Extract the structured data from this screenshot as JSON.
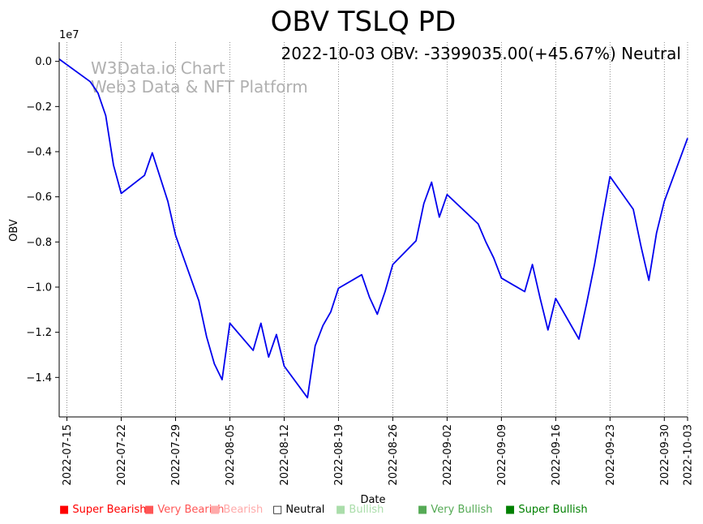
{
  "chart_data": {
    "type": "line",
    "title": "OBV TSLQ PD",
    "annotation": "2022-10-03 OBV: -3399035.00(+45.67%) Neutral",
    "watermark": [
      "W3Data.io Chart",
      "Web3 Data & NFT Platform"
    ],
    "xlabel": "Date",
    "ylabel": "OBV",
    "y_scale_label": "1e7",
    "y_unit_multiplier": 10000000,
    "ylim": [
      -1.575,
      0.085
    ],
    "yticks": [
      0.0,
      -0.2,
      -0.4,
      -0.6,
      -0.8,
      -1.0,
      -1.2,
      -1.4
    ],
    "ytick_labels": [
      "0.0",
      "−0.2",
      "−0.4",
      "−0.6",
      "−0.8",
      "−1.0",
      "−1.2",
      "−1.4"
    ],
    "xlim": [
      "2022-07-14",
      "2022-10-03"
    ],
    "xticks": [
      "2022-07-15",
      "2022-07-22",
      "2022-07-29",
      "2022-08-05",
      "2022-08-12",
      "2022-08-19",
      "2022-08-26",
      "2022-09-02",
      "2022-09-09",
      "2022-09-16",
      "2022-09-23",
      "2022-09-30",
      "2022-10-03"
    ],
    "series": [
      {
        "name": "OBV",
        "color": "#0000ee",
        "x": [
          "2022-07-14",
          "2022-07-18",
          "2022-07-19",
          "2022-07-20",
          "2022-07-21",
          "2022-07-22",
          "2022-07-25",
          "2022-07-26",
          "2022-07-28",
          "2022-07-29",
          "2022-08-01",
          "2022-08-02",
          "2022-08-03",
          "2022-08-04",
          "2022-08-05",
          "2022-08-08",
          "2022-08-09",
          "2022-08-10",
          "2022-08-11",
          "2022-08-12",
          "2022-08-15",
          "2022-08-16",
          "2022-08-17",
          "2022-08-18",
          "2022-08-19",
          "2022-08-22",
          "2022-08-23",
          "2022-08-24",
          "2022-08-25",
          "2022-08-26",
          "2022-08-29",
          "2022-08-30",
          "2022-08-31",
          "2022-09-01",
          "2022-09-02",
          "2022-09-06",
          "2022-09-07",
          "2022-09-08",
          "2022-09-09",
          "2022-09-12",
          "2022-09-13",
          "2022-09-14",
          "2022-09-15",
          "2022-09-16",
          "2022-09-19",
          "2022-09-20",
          "2022-09-21",
          "2022-09-22",
          "2022-09-23",
          "2022-09-26",
          "2022-09-27",
          "2022-09-28",
          "2022-09-29",
          "2022-09-30",
          "2022-10-03"
        ],
        "values": [
          0.01,
          -0.09,
          -0.14,
          -0.24,
          -0.46,
          -0.585,
          -0.505,
          -0.405,
          -0.62,
          -0.77,
          -1.06,
          -1.22,
          -1.34,
          -1.41,
          -1.16,
          -1.28,
          -1.16,
          -1.31,
          -1.21,
          -1.35,
          -1.49,
          -1.26,
          -1.17,
          -1.11,
          -1.005,
          -0.945,
          -1.045,
          -1.12,
          -1.02,
          -0.9,
          -0.795,
          -0.63,
          -0.535,
          -0.69,
          -0.59,
          -0.72,
          -0.8,
          -0.87,
          -0.96,
          -1.02,
          -0.9,
          -1.05,
          -1.19,
          -1.05,
          -1.23,
          -1.07,
          -0.9,
          -0.7,
          -0.51,
          -0.655,
          -0.82,
          -0.97,
          -0.76,
          -0.62,
          -0.34
        ]
      }
    ],
    "legend": [
      {
        "label": "Super Bearish",
        "marker": "■",
        "color": "#ff0000"
      },
      {
        "label": "Very Bearish",
        "marker": "■",
        "color": "#ff5555"
      },
      {
        "label": "Bearish",
        "marker": "■",
        "color": "#ffaaaa"
      },
      {
        "label": "Neutral",
        "marker": "□",
        "color": "#000000"
      },
      {
        "label": "Bullish",
        "marker": "■",
        "color": "#aaddaa"
      },
      {
        "label": "Very Bullish",
        "marker": "■",
        "color": "#55aa55"
      },
      {
        "label": "Super Bullish",
        "marker": "■",
        "color": "#008000"
      }
    ]
  }
}
